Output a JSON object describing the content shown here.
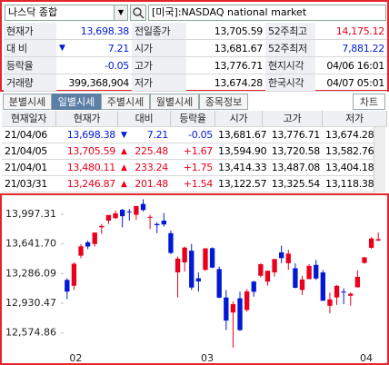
{
  "search": {
    "symbol": "나스닥 종합",
    "market": "[미국]:NASDAQ national market"
  },
  "quote": {
    "rows": [
      [
        {
          "text": "현재가"
        },
        {
          "text": "13,698.38"
        },
        {
          "text": "전일종가"
        },
        {
          "text": "13,705.59"
        },
        {
          "text": "52주최고"
        },
        {
          "text": "14,175.12"
        }
      ],
      [
        {
          "text": "대 비"
        },
        {
          "arrow": "▼",
          "text": "7.21"
        },
        {
          "text": "시가"
        },
        {
          "text": "13,681.67"
        },
        {
          "text": "52주최저"
        },
        {
          "text": "7,881.22"
        }
      ],
      [
        {
          "text": "등락율"
        },
        {
          "text": "-0.05"
        },
        {
          "text": "고가"
        },
        {
          "text": "13,776.71"
        },
        {
          "text": "현지시각"
        },
        {
          "text": "04/06 16:01"
        }
      ],
      [
        {
          "text": "거래량"
        },
        {
          "text": "399,368,904"
        },
        {
          "text": "저가"
        },
        {
          "text": "13,674.28"
        },
        {
          "text": "한국시각"
        },
        {
          "text": "04/07 05:01"
        }
      ]
    ]
  },
  "tabs": [
    "분별시세",
    "일별시세",
    "주별시세",
    "월별시세",
    "종목정보"
  ],
  "chart_button": "차트",
  "daily": {
    "header": [
      "현재일자",
      "현재가",
      "대비",
      "등락율",
      "시가",
      "고가",
      "저가"
    ],
    "rows": [
      [
        "21/04/06",
        "13,698.38",
        "▼",
        "7.21",
        "-0.05",
        "13,681.67",
        "13,776.71",
        "13,674.28"
      ],
      [
        "21/04/05",
        "13,705.59",
        "▲",
        "225.48",
        "+1.67",
        "13,594.90",
        "13,720.58",
        "13,582.76"
      ],
      [
        "21/04/01",
        "13,480.11",
        "▲",
        "233.24",
        "+1.75",
        "13,414.33",
        "13,487.08",
        "13,404.18"
      ],
      [
        "21/03/31",
        "13,246.87",
        "▲",
        "201.48",
        "+1.54",
        "13,122.57",
        "13,325.54",
        "13,118.38"
      ]
    ]
  },
  "chart_data": {
    "type": "candlestick",
    "categories": [
      null,
      "02",
      null,
      null,
      null,
      null,
      null,
      null,
      null,
      null,
      null,
      null,
      null,
      null,
      null,
      null,
      null,
      null,
      null,
      null,
      "03",
      null,
      null,
      null,
      null,
      null,
      null,
      null,
      null,
      null,
      null,
      null,
      null,
      null,
      null,
      null,
      null,
      null,
      null,
      null,
      null,
      null,
      null,
      "04",
      null,
      null
    ],
    "open": [
      13210,
      13140,
      13500,
      13660,
      13640,
      13840,
      13920,
      13950,
      14050,
      14030,
      13990,
      14120,
      13960,
      13880,
      13920,
      13770,
      13300,
      13420,
      13560,
      13230,
      13330,
      13590,
      13340,
      13000,
      12820,
      12990,
      12850,
      13190,
      13260,
      13190,
      13300,
      13540,
      13410,
      13350,
      13090,
      13220,
      13390,
      13300,
      12900,
      13000,
      13070,
      13020,
      13122,
      13414,
      13595,
      13682
    ],
    "high": [
      13230,
      13420,
      13640,
      13680,
      13780,
      13880,
      13990,
      14040,
      14060,
      14060,
      14095,
      14175,
      13990,
      13900,
      14010,
      13800,
      13490,
      13610,
      13640,
      13300,
      13590,
      13600,
      13370,
      13090,
      12950,
      13070,
      13100,
      13200,
      13410,
      13320,
      13460,
      13620,
      13570,
      13410,
      13260,
      13400,
      13450,
      13330,
      13060,
      13150,
      13110,
      13060,
      13326,
      13487,
      13721,
      13777
    ],
    "low": [
      12980,
      13090,
      13470,
      13580,
      13610,
      13760,
      13880,
      13940,
      13840,
      13920,
      13930,
      14030,
      13820,
      13770,
      13850,
      13520,
      13000,
      13310,
      13090,
      13070,
      13320,
      13350,
      12990,
      12610,
      12400,
      12600,
      12830,
      13010,
      13240,
      13140,
      13250,
      13410,
      13330,
      13110,
      13030,
      13220,
      13210,
      12960,
      12810,
      12910,
      12920,
      12900,
      13118,
      13404,
      13583,
      13674
    ],
    "close": [
      13070,
      13403,
      13612,
      13610,
      13777,
      13856,
      13987,
      14007,
      13973,
      14025,
      14095,
      14047,
      13965,
      13865,
      13874,
      13533,
      13465,
      13597,
      13119,
      13192,
      13588,
      13358,
      12998,
      12723,
      12920,
      12609,
      13073,
      13068,
      13398,
      13320,
      13460,
      13471,
      13525,
      13116,
      13215,
      13377,
      13227,
      12961,
      12977,
      13139,
      13059,
      13045,
      13247,
      13480,
      13706,
      13698
    ],
    "up_color": "#e8001c",
    "down_color": "#0019d6",
    "ylim": [
      12300,
      14170
    ],
    "yticks": [
      {
        "value": 12574.86,
        "label": "12,574.86"
      },
      {
        "value": 12930.47,
        "label": "12,930.47"
      },
      {
        "value": 13286.09,
        "label": "13,286.09"
      },
      {
        "value": 13641.7,
        "label": "13,641.70"
      },
      {
        "value": 13997.31,
        "label": "13,997.31"
      }
    ]
  }
}
